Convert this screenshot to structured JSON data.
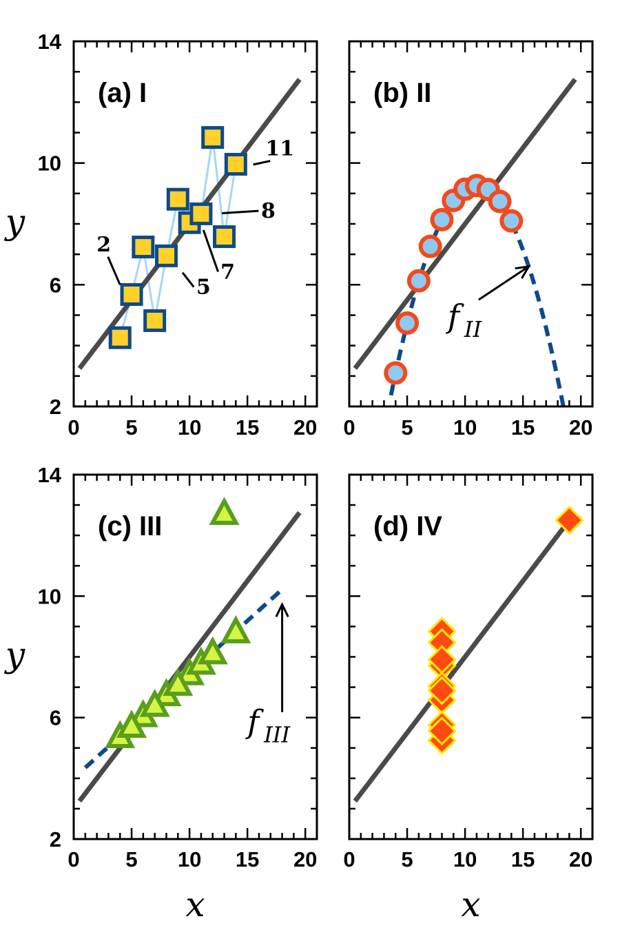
{
  "chart_data": [
    {
      "panel": "a",
      "type": "scatter",
      "title": "(a) I",
      "xlabel": "",
      "ylabel": "y",
      "xlim": [
        0,
        21
      ],
      "ylim": [
        2,
        14
      ],
      "xticks": [
        "0",
        "5",
        "10",
        "15",
        "20"
      ],
      "yticks": [
        "2",
        "6",
        "10",
        "14"
      ],
      "series": [
        {
          "name": "I",
          "marker": "square",
          "fill": "#ffd12a",
          "edge": "#0d4a8a",
          "connect_color": "#a7d6f5",
          "x": [
            10,
            8,
            13,
            9,
            11,
            14,
            6,
            4,
            12,
            7,
            5
          ],
          "y": [
            8.04,
            6.95,
            7.58,
            8.81,
            8.33,
            9.96,
            7.24,
            4.26,
            10.84,
            4.82,
            5.68
          ]
        }
      ],
      "fit_line": {
        "color": "#4a4a4a",
        "x": [
          0.5,
          19.5
        ],
        "y": [
          3.25,
          12.75
        ]
      },
      "annotations": [
        {
          "text": "2",
          "x": 2.6,
          "y": 7.1,
          "target_x": 4.0,
          "target_y": 6.0
        },
        {
          "text": "5",
          "x": 11.2,
          "y": 5.7,
          "target_x": 9.4,
          "target_y": 6.4
        },
        {
          "text": "7",
          "x": 13.3,
          "y": 6.2,
          "target_x": 11.2,
          "target_y": 7.8
        },
        {
          "text": "8",
          "x": 16.8,
          "y": 8.2,
          "target_x": 12.8,
          "target_y": 8.35
        },
        {
          "text": "11",
          "x": 17.8,
          "y": 10.25,
          "target_x": 15.5,
          "target_y": 9.95
        }
      ]
    },
    {
      "panel": "b",
      "type": "scatter",
      "title": "(b) II",
      "xlabel": "",
      "ylabel": "",
      "xlim": [
        0,
        21
      ],
      "ylim": [
        2,
        14
      ],
      "xticks": [
        "0",
        "5",
        "10",
        "15",
        "20"
      ],
      "yticks": [],
      "series": [
        {
          "name": "II",
          "marker": "circle",
          "fill": "#8fc8f0",
          "edge": "#f24a1d",
          "x": [
            4,
            5,
            6,
            7,
            8,
            9,
            10,
            11,
            12,
            13,
            14
          ],
          "y": [
            3.1,
            4.74,
            6.13,
            7.26,
            8.14,
            8.77,
            9.14,
            9.26,
            9.13,
            8.74,
            8.1
          ]
        }
      ],
      "fit_line": {
        "color": "#4a4a4a",
        "x": [
          0.5,
          19.5
        ],
        "y": [
          3.25,
          12.75
        ]
      },
      "fit_curve": {
        "name": "f_II",
        "color": "#0d4a8a",
        "a": -0.127,
        "b": 2.781,
        "c": -6.0,
        "x_range": [
          3.6,
          18.5
        ]
      },
      "func_label": {
        "base": "f",
        "sub": "II",
        "x": 8.5,
        "y": 4.6,
        "arrow_to_x": 15.5,
        "arrow_to_y": 6.6
      }
    },
    {
      "panel": "c",
      "type": "scatter",
      "title": "(c) III",
      "xlabel": "x",
      "ylabel": "y",
      "xlim": [
        0,
        21
      ],
      "ylim": [
        2,
        14
      ],
      "xticks": [
        "0",
        "5",
        "10",
        "15",
        "20"
      ],
      "yticks": [
        "2",
        "6",
        "10",
        "14"
      ],
      "series": [
        {
          "name": "III",
          "marker": "triangle",
          "fill": "#d6f542",
          "edge": "#5a9e1e",
          "x": [
            10,
            8,
            13,
            9,
            11,
            14,
            6,
            4,
            12,
            7,
            5
          ],
          "y": [
            7.46,
            6.77,
            12.74,
            7.11,
            7.81,
            8.84,
            6.08,
            5.39,
            8.15,
            6.42,
            5.73
          ]
        }
      ],
      "fit_line": {
        "color": "#4a4a4a",
        "x": [
          0.5,
          19.5
        ],
        "y": [
          3.25,
          12.75
        ]
      },
      "fit_curve": {
        "name": "f_III",
        "color": "#0d4a8a",
        "slope": 0.3454,
        "intercept": 4.0056,
        "x_range": [
          1.0,
          18.0
        ]
      },
      "func_label": {
        "base": "f",
        "sub": "III",
        "x": 15.0,
        "y": 5.5,
        "arrow_to_x": 18.0,
        "arrow_to_y": 10.0
      }
    },
    {
      "panel": "d",
      "type": "scatter",
      "title": "(d) IV",
      "xlabel": "x",
      "ylabel": "",
      "xlim": [
        0,
        21
      ],
      "ylim": [
        2,
        14
      ],
      "xticks": [
        "0",
        "5",
        "10",
        "15",
        "20"
      ],
      "yticks": [],
      "series": [
        {
          "name": "IV",
          "marker": "diamond",
          "fill": "#ff4a14",
          "edge": "#ffea00",
          "x": [
            8,
            8,
            8,
            8,
            8,
            8,
            8,
            19,
            8,
            8,
            8
          ],
          "y": [
            6.58,
            5.76,
            7.71,
            8.84,
            8.47,
            7.04,
            5.25,
            12.5,
            5.56,
            7.91,
            6.89
          ]
        }
      ],
      "fit_line": {
        "color": "#4a4a4a",
        "x": [
          0.5,
          19.5
        ],
        "y": [
          3.25,
          12.75
        ]
      }
    }
  ]
}
